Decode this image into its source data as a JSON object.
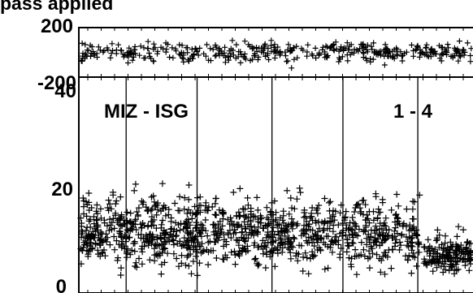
{
  "chart_data": [
    {
      "type": "scatter",
      "title": "pass applied",
      "yticks": [
        "200",
        "-200"
      ],
      "ylim": [
        -200,
        200
      ],
      "marker": "plus",
      "color": "#000000",
      "summary": {
        "mean": 0,
        "spread": 70
      }
    },
    {
      "type": "scatter",
      "annotations": [
        "MIZ - ISG",
        "1 - 4"
      ],
      "yticks": [
        "40",
        "20",
        "0"
      ],
      "ylim": [
        0,
        40
      ],
      "marker": "plus",
      "color": "#000000",
      "segments": [
        {
          "x_fraction": [
            0.0,
            0.87
          ],
          "mean": 11,
          "spread": 6
        },
        {
          "x_fraction": [
            0.87,
            1.0
          ],
          "mean": 7,
          "spread": 3
        }
      ],
      "event_lines_x_fraction": [
        0.12,
        0.3,
        0.49,
        0.67,
        0.86
      ]
    }
  ]
}
